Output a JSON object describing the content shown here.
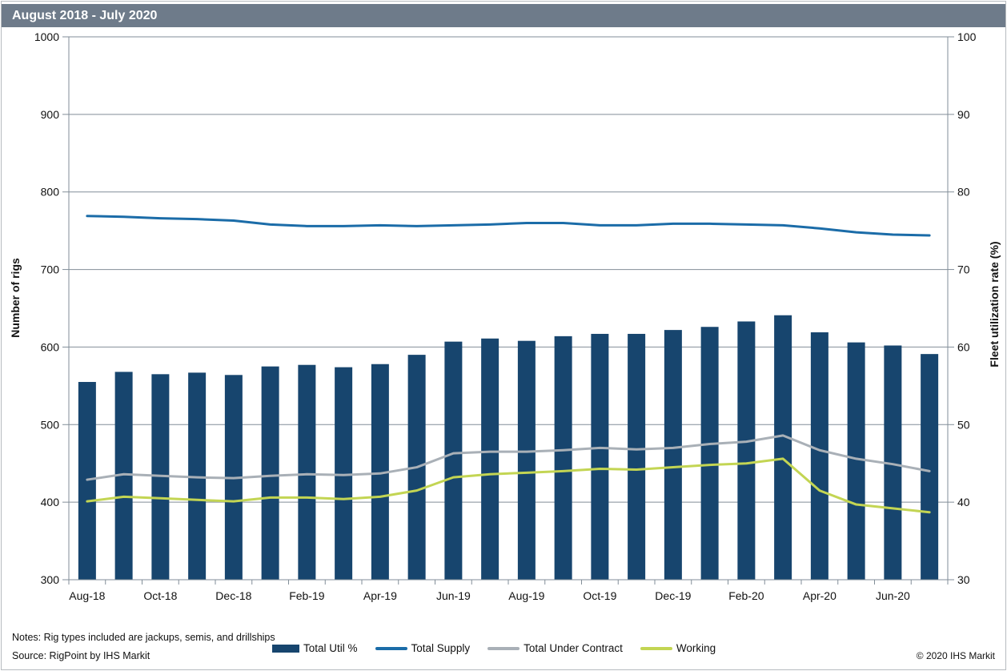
{
  "header": {
    "title": "August 2018 - July 2020"
  },
  "chart_data": {
    "type": "bar",
    "subtype": "bar+line dual axis",
    "categories": [
      "Aug-18",
      "Sep-18",
      "Oct-18",
      "Nov-18",
      "Dec-18",
      "Jan-19",
      "Feb-19",
      "Mar-19",
      "Apr-19",
      "May-19",
      "Jun-19",
      "Jul-19",
      "Aug-19",
      "Sep-19",
      "Oct-19",
      "Nov-19",
      "Dec-19",
      "Jan-20",
      "Feb-20",
      "Mar-20",
      "Apr-20",
      "May-20",
      "Jun-20",
      "Jul-20"
    ],
    "x_tick_labels": [
      "Aug-18",
      "Oct-18",
      "Dec-18",
      "Feb-19",
      "Apr-19",
      "Jun-19",
      "Aug-19",
      "Oct-19",
      "Dec-19",
      "Feb-20",
      "Apr-20",
      "Jun-20"
    ],
    "left_axis": {
      "label": "Number of rigs",
      "min": 300,
      "max": 1000,
      "step": 100
    },
    "right_axis": {
      "label": "Fleet utilization rate (%)",
      "min": 30,
      "max": 100,
      "step": 10
    },
    "grid": true,
    "grid_color": "#828e98",
    "legend_position": "bottom",
    "bar_series": {
      "name": "Total Util %",
      "axis": "right",
      "color": "#17456e",
      "values": [
        55.5,
        56.8,
        56.5,
        56.7,
        56.4,
        57.5,
        57.7,
        57.4,
        57.8,
        59.0,
        60.7,
        61.1,
        60.8,
        61.4,
        61.7,
        61.7,
        62.2,
        62.6,
        63.3,
        64.1,
        61.9,
        60.6,
        60.2,
        59.1
      ]
    },
    "line_series": [
      {
        "name": "Total Supply",
        "axis": "left",
        "color": "#1b6ca8",
        "values": [
          769,
          768,
          766,
          765,
          763,
          758,
          756,
          756,
          757,
          756,
          757,
          758,
          760,
          760,
          757,
          757,
          759,
          759,
          758,
          757,
          753,
          748,
          745,
          744
        ]
      },
      {
        "name": "Total Under Contract",
        "axis": "left",
        "color": "#a9b0b7",
        "values": [
          429,
          436,
          434,
          432,
          431,
          434,
          436,
          435,
          437,
          445,
          463,
          465,
          465,
          467,
          470,
          468,
          470,
          475,
          478,
          486,
          467,
          456,
          449,
          440
        ]
      },
      {
        "name": "Working",
        "axis": "left",
        "color": "#c3d553",
        "values": [
          401,
          407,
          405,
          403,
          401,
          406,
          406,
          404,
          407,
          415,
          432,
          436,
          438,
          440,
          443,
          442,
          445,
          448,
          450,
          456,
          415,
          397,
          392,
          387
        ]
      }
    ]
  },
  "legend": {
    "items": [
      {
        "label": "Total Util %",
        "swatch": "bar",
        "color": "#17456e"
      },
      {
        "label": "Total Supply",
        "swatch": "line",
        "color": "#1b6ca8"
      },
      {
        "label": "Total Under Contract",
        "swatch": "line",
        "color": "#a9b0b7"
      },
      {
        "label": "Working",
        "swatch": "line",
        "color": "#c3d553"
      }
    ]
  },
  "footer": {
    "notes": "Notes: Rig types included are jackups, semis, and drillships",
    "source": "Source: RigPoint by IHS Markit",
    "copyright": "© 2020 IHS Markit"
  }
}
